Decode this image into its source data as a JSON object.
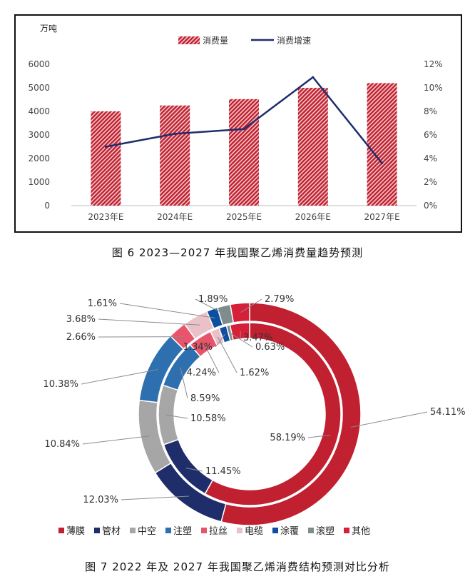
{
  "figure1": {
    "caption": "图 6  2023—2027 年我国聚乙烯消费量趋势预测",
    "chart_data": {
      "type": "bar",
      "unit_label": "万吨",
      "categories": [
        "2023年E",
        "2024年E",
        "2025年E",
        "2026年E",
        "2027年E"
      ],
      "series": [
        {
          "name": "消费量",
          "type": "bar",
          "axis": "left",
          "values": [
            4000,
            4250,
            4520,
            5000,
            5200
          ]
        },
        {
          "name": "消费增速",
          "type": "line",
          "axis": "right",
          "values": [
            5.0,
            6.1,
            6.5,
            10.9,
            3.6
          ]
        }
      ],
      "left_axis": {
        "ylim": [
          0,
          6000
        ],
        "ticks": [
          "0",
          "1000",
          "2000",
          "3000",
          "4000",
          "5000",
          "6000"
        ]
      },
      "right_axis": {
        "ylim": [
          0,
          12
        ],
        "ticks": [
          "0%",
          "2%",
          "4%",
          "6%",
          "8%",
          "10%",
          "12%"
        ]
      },
      "legend_position": "top-center",
      "colors": {
        "bar": "#c0202f",
        "line": "#1f2d6b"
      }
    }
  },
  "figure2": {
    "caption": "图 7  2022 年及 2027 年我国聚乙烯消费结构预测对比分析",
    "chart_data": {
      "type": "pie",
      "subtype": "double-donut",
      "categories": [
        "薄膜",
        "管材",
        "中空",
        "注塑",
        "拉丝",
        "电缆",
        "涂覆",
        "滚塑",
        "其他"
      ],
      "colors": [
        "#c0202f",
        "#1f2d6b",
        "#a6a6a6",
        "#2e6fb0",
        "#e8546b",
        "#ebc1c8",
        "#0c4fa0",
        "#7f8c8d",
        "#d6203a"
      ],
      "series": [
        {
          "ring": "outer",
          "values": [
            54.11,
            12.03,
            10.84,
            10.38,
            2.66,
            3.68,
            1.61,
            1.89,
            2.79
          ],
          "labels": [
            "54.11%",
            "12.03%",
            "10.84%",
            "10.38%",
            "2.66%",
            "3.68%",
            "1.61%",
            "1.89%",
            "2.79%"
          ]
        },
        {
          "ring": "inner",
          "values": [
            58.19,
            11.45,
            10.58,
            8.59,
            4.24,
            1.62,
            1.34,
            0.63,
            3.47
          ],
          "labels": [
            "58.19%",
            "11.45%",
            "10.58%",
            "8.59%",
            "4.24%",
            "1.62%",
            "1.34%",
            "0.63%",
            "3.47%"
          ]
        }
      ],
      "legend_position": "bottom"
    }
  }
}
